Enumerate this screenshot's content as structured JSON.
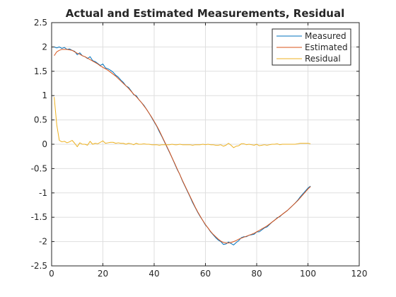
{
  "chart_data": {
    "type": "line",
    "title": "Actual and Estimated Measurements, Residual",
    "xlabel": "",
    "ylabel": "",
    "xlim": [
      0,
      120
    ],
    "ylim": [
      -2.5,
      2.5
    ],
    "xticks": [
      "0",
      "20",
      "40",
      "60",
      "80",
      "100",
      "120"
    ],
    "yticks": [
      "-2.5",
      "-2",
      "-1.5",
      "-1",
      "-0.5",
      "0",
      "0.5",
      "1",
      "1.5",
      "2",
      "2.5"
    ],
    "grid": true,
    "legend_position": "top-right",
    "x_start": 1,
    "x_step": 1,
    "series": [
      {
        "name": "Measured",
        "color": "#0072BD",
        "values": [
          2.0,
          1.98,
          2.0,
          1.97,
          1.99,
          1.95,
          1.96,
          1.93,
          1.91,
          1.84,
          1.88,
          1.82,
          1.8,
          1.76,
          1.8,
          1.72,
          1.7,
          1.66,
          1.62,
          1.65,
          1.57,
          1.55,
          1.52,
          1.48,
          1.42,
          1.38,
          1.32,
          1.27,
          1.2,
          1.17,
          1.1,
          1.02,
          1.0,
          0.92,
          0.86,
          0.8,
          0.72,
          0.64,
          0.55,
          0.46,
          0.37,
          0.26,
          0.16,
          0.05,
          -0.06,
          -0.17,
          -0.28,
          -0.4,
          -0.52,
          -0.62,
          -0.75,
          -0.86,
          -0.97,
          -1.08,
          -1.2,
          -1.3,
          -1.4,
          -1.49,
          -1.57,
          -1.66,
          -1.72,
          -1.8,
          -1.86,
          -1.92,
          -1.97,
          -2.0,
          -2.06,
          -2.05,
          -2.01,
          -2.04,
          -2.07,
          -2.02,
          -1.98,
          -1.92,
          -1.9,
          -1.9,
          -1.87,
          -1.86,
          -1.85,
          -1.8,
          -1.8,
          -1.76,
          -1.72,
          -1.7,
          -1.65,
          -1.6,
          -1.56,
          -1.51,
          -1.49,
          -1.44,
          -1.4,
          -1.36,
          -1.31,
          -1.26,
          -1.21,
          -1.15,
          -1.08,
          -1.02,
          -0.96,
          -0.9,
          -0.86
        ]
      },
      {
        "name": "Estimated",
        "color": "#D95319",
        "values": [
          1.82,
          1.9,
          1.93,
          1.95,
          1.95,
          1.95,
          1.94,
          1.93,
          1.9,
          1.87,
          1.85,
          1.82,
          1.8,
          1.77,
          1.74,
          1.71,
          1.68,
          1.65,
          1.61,
          1.58,
          1.55,
          1.52,
          1.48,
          1.44,
          1.4,
          1.35,
          1.3,
          1.25,
          1.2,
          1.15,
          1.09,
          1.03,
          0.98,
          0.92,
          0.86,
          0.79,
          0.72,
          0.64,
          0.56,
          0.47,
          0.38,
          0.28,
          0.17,
          0.06,
          -0.05,
          -0.16,
          -0.28,
          -0.39,
          -0.51,
          -0.62,
          -0.74,
          -0.85,
          -0.96,
          -1.07,
          -1.18,
          -1.29,
          -1.39,
          -1.48,
          -1.57,
          -1.65,
          -1.72,
          -1.79,
          -1.85,
          -1.9,
          -1.95,
          -1.99,
          -2.02,
          -2.03,
          -2.03,
          -2.02,
          -2.0,
          -1.98,
          -1.95,
          -1.93,
          -1.91,
          -1.89,
          -1.87,
          -1.85,
          -1.83,
          -1.8,
          -1.77,
          -1.74,
          -1.71,
          -1.68,
          -1.64,
          -1.6,
          -1.56,
          -1.52,
          -1.48,
          -1.44,
          -1.4,
          -1.36,
          -1.31,
          -1.26,
          -1.21,
          -1.16,
          -1.1,
          -1.04,
          -0.98,
          -0.92,
          -0.87
        ]
      },
      {
        "name": "Residual",
        "color": "#EDB120",
        "values": [
          0.97,
          0.4,
          0.08,
          0.05,
          0.06,
          0.03,
          0.05,
          0.08,
          0.02,
          -0.05,
          0.03,
          0.0,
          0.0,
          -0.02,
          0.06,
          0.0,
          0.02,
          0.01,
          0.04,
          0.07,
          0.02,
          0.03,
          0.04,
          0.04,
          0.02,
          0.03,
          0.02,
          0.02,
          0.0,
          0.02,
          0.01,
          -0.01,
          0.02,
          0.0,
          0.0,
          0.01,
          0.0,
          0.0,
          -0.01,
          -0.01,
          -0.01,
          -0.02,
          -0.01,
          -0.01,
          -0.01,
          -0.01,
          0.0,
          -0.01,
          -0.01,
          0.0,
          -0.01,
          -0.01,
          -0.01,
          -0.01,
          -0.02,
          -0.01,
          -0.01,
          -0.01,
          0.0,
          -0.01,
          0.0,
          -0.01,
          -0.01,
          -0.02,
          -0.02,
          -0.01,
          -0.04,
          -0.02,
          0.02,
          -0.02,
          -0.07,
          -0.04,
          -0.03,
          0.01,
          0.01,
          -0.01,
          0.0,
          -0.01,
          -0.02,
          0.0,
          -0.03,
          -0.02,
          -0.01,
          -0.02,
          -0.01,
          0.0,
          0.0,
          0.01,
          -0.01,
          0.0,
          0.0,
          0.0,
          0.0,
          0.0,
          0.0,
          0.01,
          0.02,
          0.02,
          0.02,
          0.02,
          0.01
        ]
      }
    ]
  }
}
